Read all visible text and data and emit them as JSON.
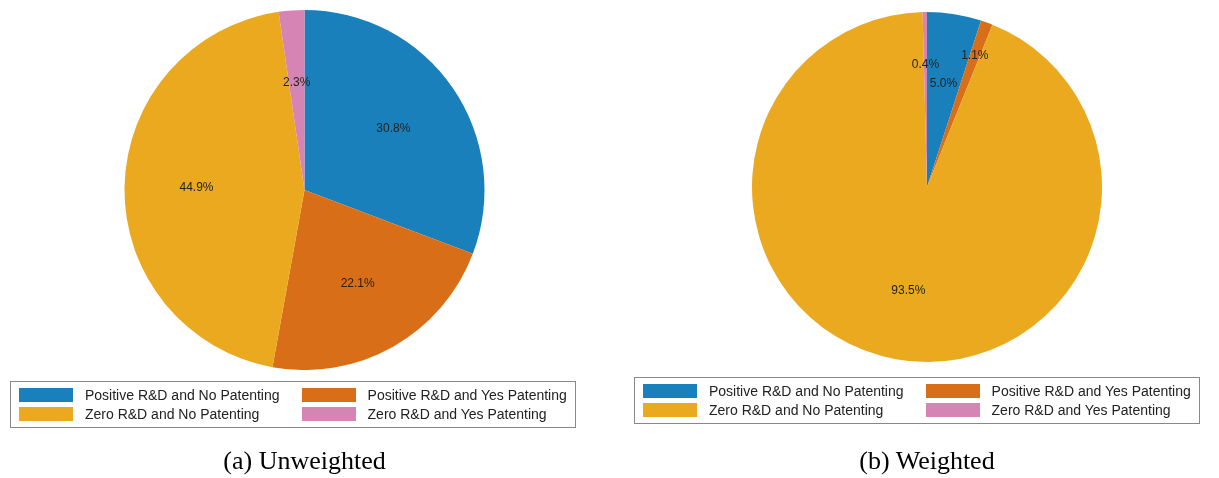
{
  "chart_data": [
    {
      "type": "pie",
      "title": "(a) Unweighted",
      "categories": [
        "Positive R&D and No Patenting",
        "Positive R&D and Yes Patenting",
        "Zero R&D and No Patenting",
        "Zero R&D and Yes Patenting"
      ],
      "values": [
        30.8,
        22.1,
        44.9,
        2.3
      ],
      "value_labels": [
        "30.8%",
        "22.1%",
        "44.9%",
        "2.3%"
      ],
      "colors": [
        "#1a80bb",
        "#d96e19",
        "#eaa91f",
        "#d684b3"
      ],
      "legend": "bottom"
    },
    {
      "type": "pie",
      "title": "(b) Weighted",
      "categories": [
        "Positive R&D and No Patenting",
        "Positive R&D and Yes Patenting",
        "Zero R&D and No Patenting",
        "Zero R&D and Yes Patenting"
      ],
      "values": [
        5.0,
        1.1,
        93.5,
        0.4
      ],
      "value_labels": [
        "5.0%",
        "1.1%",
        "93.5%",
        "0.4%"
      ],
      "colors": [
        "#1a80bb",
        "#d96e19",
        "#eaa91f",
        "#d684b3"
      ],
      "legend": "bottom"
    }
  ]
}
